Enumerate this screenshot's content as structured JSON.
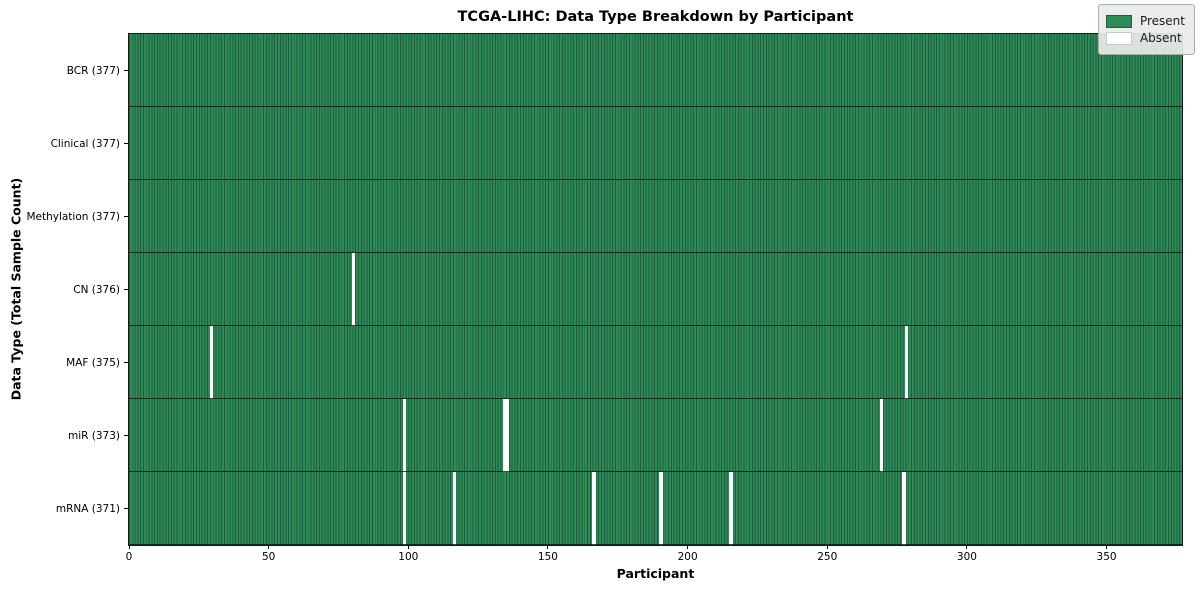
{
  "chart_data": {
    "type": "heatmap",
    "title": "TCGA-LIHC: Data Type Breakdown by Participant",
    "xlabel": "Participant",
    "ylabel": "Data Type (Total Sample Count)",
    "n_participants": 377,
    "xlim": [
      0,
      377
    ],
    "x_ticks": [
      0,
      50,
      100,
      150,
      200,
      250,
      300,
      350
    ],
    "grid": "row-separators-only",
    "legend_position": "upper right",
    "legend": [
      {
        "label": "Present",
        "color": "#2e8b57"
      },
      {
        "label": "Absent",
        "color": "#ffffff"
      }
    ],
    "colors": {
      "present": "#2e8b57",
      "cell_edge": "#1e5d3c",
      "absent": "#ffffff",
      "legend_bg": "#e9ece9"
    },
    "rows": [
      {
        "label": "BCR (377)",
        "data_type": "BCR",
        "total_samples": 377,
        "absent_participants": []
      },
      {
        "label": "Clinical (377)",
        "data_type": "Clinical",
        "total_samples": 377,
        "absent_participants": []
      },
      {
        "label": "Methylation (377)",
        "data_type": "Methylation",
        "total_samples": 377,
        "absent_participants": []
      },
      {
        "label": "CN (376)",
        "data_type": "CN",
        "total_samples": 376,
        "absent_participants": [
          80
        ]
      },
      {
        "label": "MAF (375)",
        "data_type": "MAF",
        "total_samples": 375,
        "absent_participants": [
          29,
          278
        ]
      },
      {
        "label": "miR (373)",
        "data_type": "miR",
        "total_samples": 373,
        "absent_participants": [
          98,
          134,
          135,
          269
        ]
      },
      {
        "label": "mRNA (371)",
        "data_type": "mRNA",
        "total_samples": 371,
        "absent_participants": [
          98,
          116,
          166,
          190,
          215,
          277
        ]
      }
    ]
  }
}
